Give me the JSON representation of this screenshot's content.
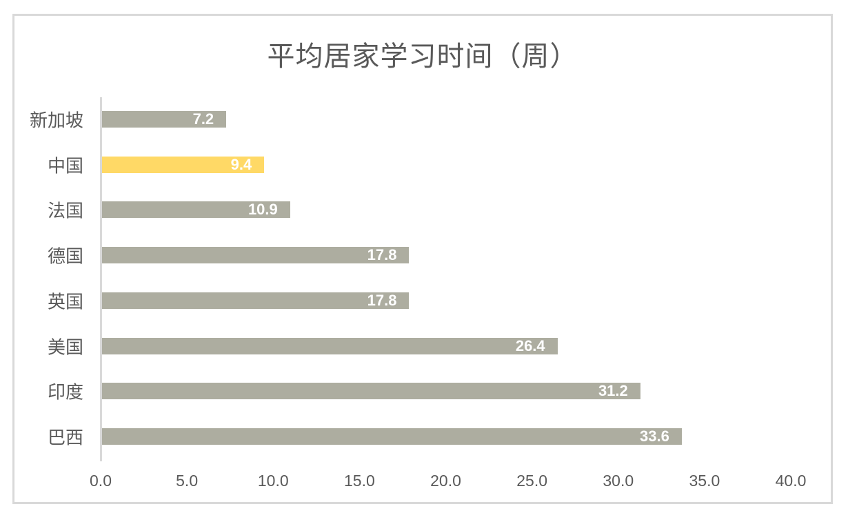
{
  "chart_data": {
    "type": "bar",
    "orientation": "horizontal",
    "title": "平均居家学习时间（周）",
    "xlabel": "",
    "ylabel": "",
    "categories": [
      "新加坡",
      "中国",
      "法国",
      "德国",
      "英国",
      "美国",
      "印度",
      "巴西"
    ],
    "values": [
      7.2,
      9.4,
      10.9,
      17.8,
      17.8,
      26.4,
      31.2,
      33.6
    ],
    "value_labels": [
      "7.2",
      "9.4",
      "10.9",
      "17.8",
      "17.8",
      "26.4",
      "31.2",
      "33.6"
    ],
    "highlight_category": "中国",
    "xlim": [
      0,
      40
    ],
    "x_ticks": [
      "0.0",
      "5.0",
      "10.0",
      "15.0",
      "20.0",
      "25.0",
      "30.0",
      "35.0",
      "40.0"
    ],
    "grid": false,
    "legend": null,
    "colors": {
      "default_bar": "#adada0",
      "highlight_bar": "#ffd966",
      "label_text": "#ffffff",
      "axis_text": "#595959",
      "border": "#d9d9d9"
    }
  }
}
